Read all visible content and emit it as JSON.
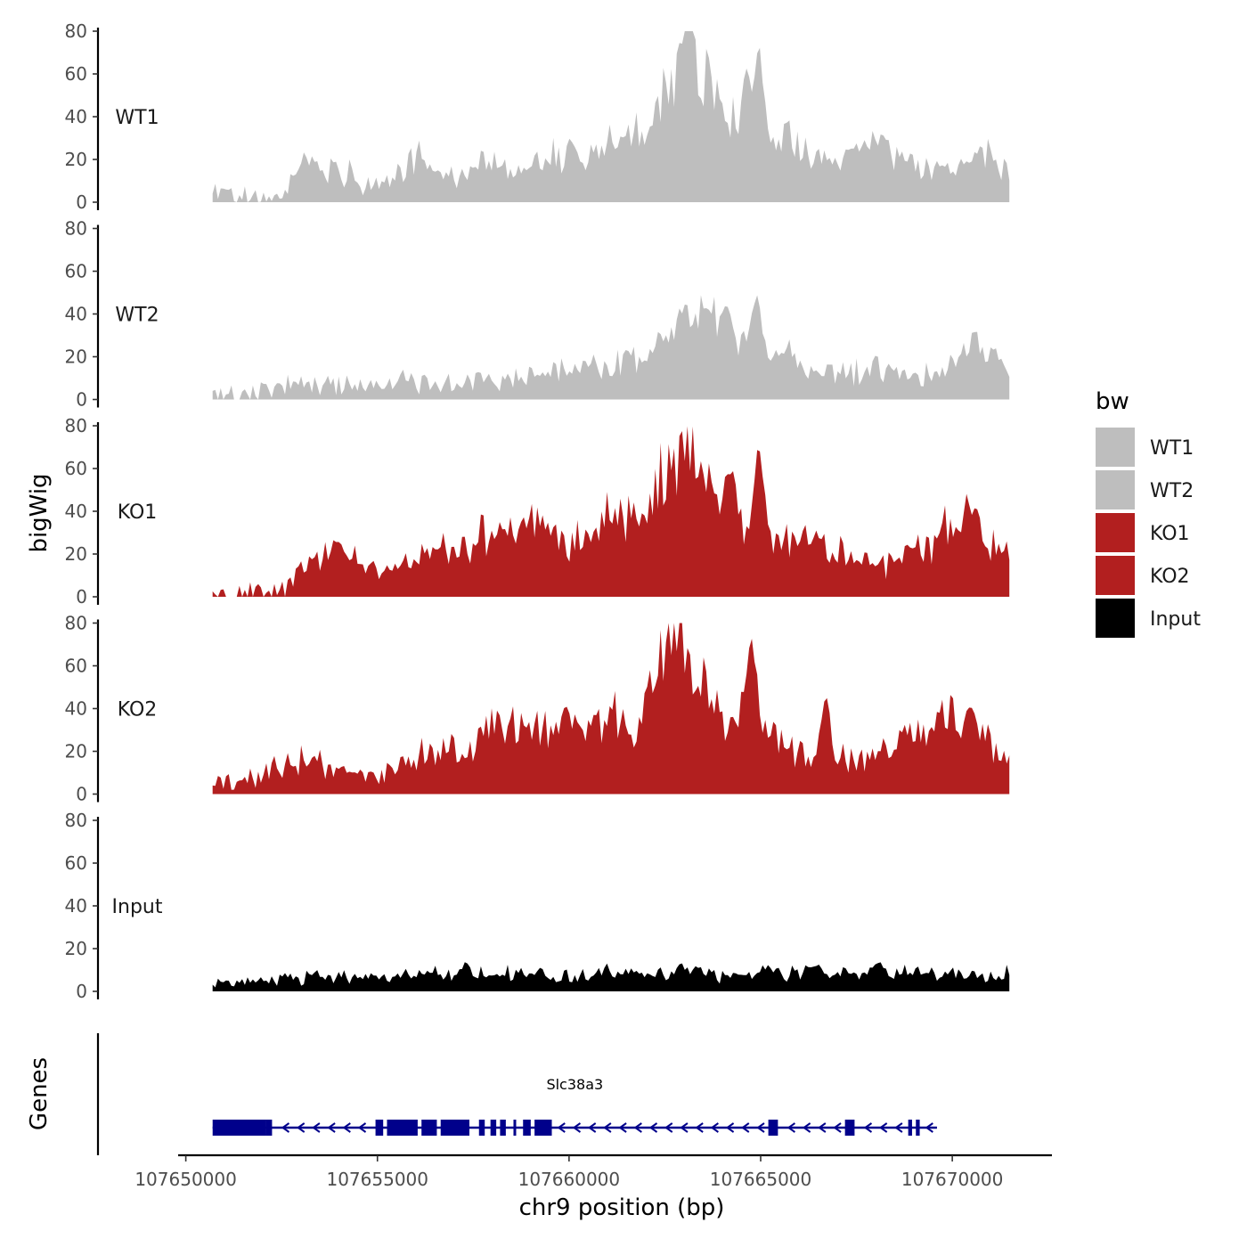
{
  "chart_data": {
    "type": "area",
    "chromosome": "chr9",
    "xlabel": "chr9 position (bp)",
    "ylabel": "bigWig",
    "genes_label": "Genes",
    "xlim": [
      107649800,
      107672600
    ],
    "x_ticks": [
      107650000,
      107655000,
      107660000,
      107665000,
      107670000
    ],
    "x_tick_labels": [
      "107650000",
      "107655000",
      "107660000",
      "107665000",
      "107670000"
    ],
    "ylim": [
      0,
      80
    ],
    "y_ticks": [
      0,
      20,
      40,
      60,
      80
    ],
    "y_tick_labels": [
      "0",
      "20",
      "40",
      "60",
      "80"
    ],
    "grid": false,
    "legend": {
      "title": "bw",
      "position": "right",
      "entries": [
        {
          "label": "WT1",
          "color": "#bebebe"
        },
        {
          "label": "WT2",
          "color": "#bebebe"
        },
        {
          "label": "KO1",
          "color": "#b21f1f"
        },
        {
          "label": "KO2",
          "color": "#b21f1f"
        },
        {
          "label": "Input",
          "color": "#000000"
        }
      ]
    },
    "x_start": 107650700,
    "x_end": 107671500,
    "bin_size_bp": 800,
    "series": [
      {
        "name": "WT1",
        "label": "WT1",
        "color": "#bebebe",
        "values": [
          5,
          4,
          3,
          2,
          8,
          20,
          12,
          15,
          10,
          7,
          12,
          22,
          14,
          11,
          16,
          18,
          15,
          17,
          21,
          20,
          18,
          24,
          30,
          33,
          45,
          58,
          76,
          48,
          38,
          30,
          28,
          33,
          24,
          18,
          20,
          28,
          32,
          22,
          18,
          15,
          14,
          22,
          20,
          12
        ],
        "peaks": [
          [
            107664950,
            77
          ],
          [
            107664650,
            65
          ],
          [
            107663900,
            50
          ],
          [
            107660050,
            30
          ]
        ]
      },
      {
        "name": "WT2",
        "label": "WT2",
        "color": "#bebebe",
        "values": [
          3,
          2,
          3,
          4,
          6,
          8,
          7,
          7,
          6,
          8,
          9,
          8,
          7,
          8,
          9,
          10,
          10,
          11,
          12,
          13,
          15,
          16,
          17,
          18,
          24,
          30,
          45,
          40,
          30,
          26,
          24,
          20,
          16,
          14,
          12,
          12,
          14,
          14,
          10,
          12,
          18,
          24,
          20,
          16
        ],
        "peaks": [
          [
            107664900,
            50
          ],
          [
            107664100,
            45
          ],
          [
            107662400,
            31
          ],
          [
            107670500,
            25
          ]
        ]
      },
      {
        "name": "KO1",
        "label": "KO1",
        "color": "#b21f1f",
        "values": [
          1,
          1,
          2,
          3,
          4,
          14,
          18,
          25,
          15,
          10,
          14,
          18,
          24,
          22,
          26,
          30,
          28,
          32,
          30,
          26,
          28,
          35,
          38,
          34,
          55,
          65,
          72,
          50,
          40,
          32,
          28,
          26,
          28,
          24,
          22,
          20,
          16,
          18,
          24,
          28,
          40,
          36,
          24,
          18
        ],
        "peaks": [
          [
            107664950,
            74
          ],
          [
            107664250,
            62
          ],
          [
            107662700,
            40
          ],
          [
            107670600,
            42
          ]
        ]
      },
      {
        "name": "KO2",
        "label": "KO2",
        "color": "#b21f1f",
        "values": [
          4,
          5,
          7,
          10,
          14,
          16,
          15,
          12,
          8,
          7,
          10,
          18,
          22,
          20,
          25,
          32,
          30,
          34,
          28,
          26,
          30,
          32,
          36,
          30,
          60,
          74,
          62,
          40,
          34,
          35,
          32,
          24,
          18,
          16,
          16,
          18,
          22,
          24,
          28,
          30,
          38,
          32,
          26,
          14
        ],
        "peaks": [
          [
            107664750,
            76
          ],
          [
            107666700,
            49
          ],
          [
            107659900,
            43
          ],
          [
            107670500,
            41
          ]
        ]
      },
      {
        "name": "Input",
        "label": "Input",
        "color": "#000000",
        "values": [
          3,
          4,
          4,
          5,
          6,
          7,
          8,
          7,
          6,
          7,
          8,
          8,
          9,
          7,
          7,
          8,
          8,
          9,
          8,
          7,
          8,
          9,
          8,
          8,
          8,
          9,
          9,
          8,
          8,
          9,
          8,
          9,
          10,
          8,
          9,
          8,
          9,
          8,
          9,
          8,
          9,
          8,
          9,
          8
        ],
        "peaks": [
          [
            107657300,
            14
          ],
          [
            107668100,
            14
          ],
          [
            107666500,
            13
          ],
          [
            107662900,
            13
          ]
        ]
      }
    ],
    "gene_track": {
      "gene_name": "Slc38a3",
      "color": "#00008b",
      "strand": "-",
      "start": 107650700,
      "end": 107669600,
      "exons": [
        [
          107650700,
          107652100
        ],
        [
          107652100,
          107652250
        ],
        [
          107654950,
          107655150
        ],
        [
          107655250,
          107656050
        ],
        [
          107656150,
          107656550
        ],
        [
          107656650,
          107657400
        ],
        [
          107657650,
          107657800
        ],
        [
          107657950,
          107658100
        ],
        [
          107658200,
          107658350
        ],
        [
          107658550,
          107658600
        ],
        [
          107658800,
          107659000
        ],
        [
          107659100,
          107659550
        ],
        [
          107665200,
          107665450
        ],
        [
          107667200,
          107667450
        ],
        [
          107668850,
          107668950
        ],
        [
          107669050,
          107669150
        ]
      ]
    }
  }
}
